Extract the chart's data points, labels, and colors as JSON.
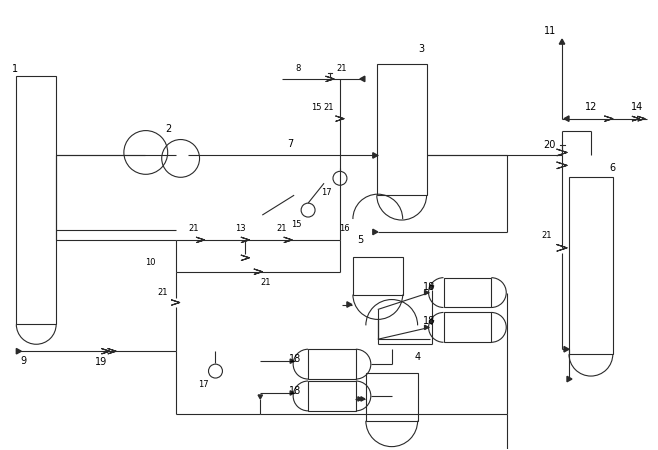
{
  "bg_color": "#ffffff",
  "line_color": "#2a2a2a",
  "fig_width": 6.58,
  "fig_height": 4.5,
  "dpi": 100
}
